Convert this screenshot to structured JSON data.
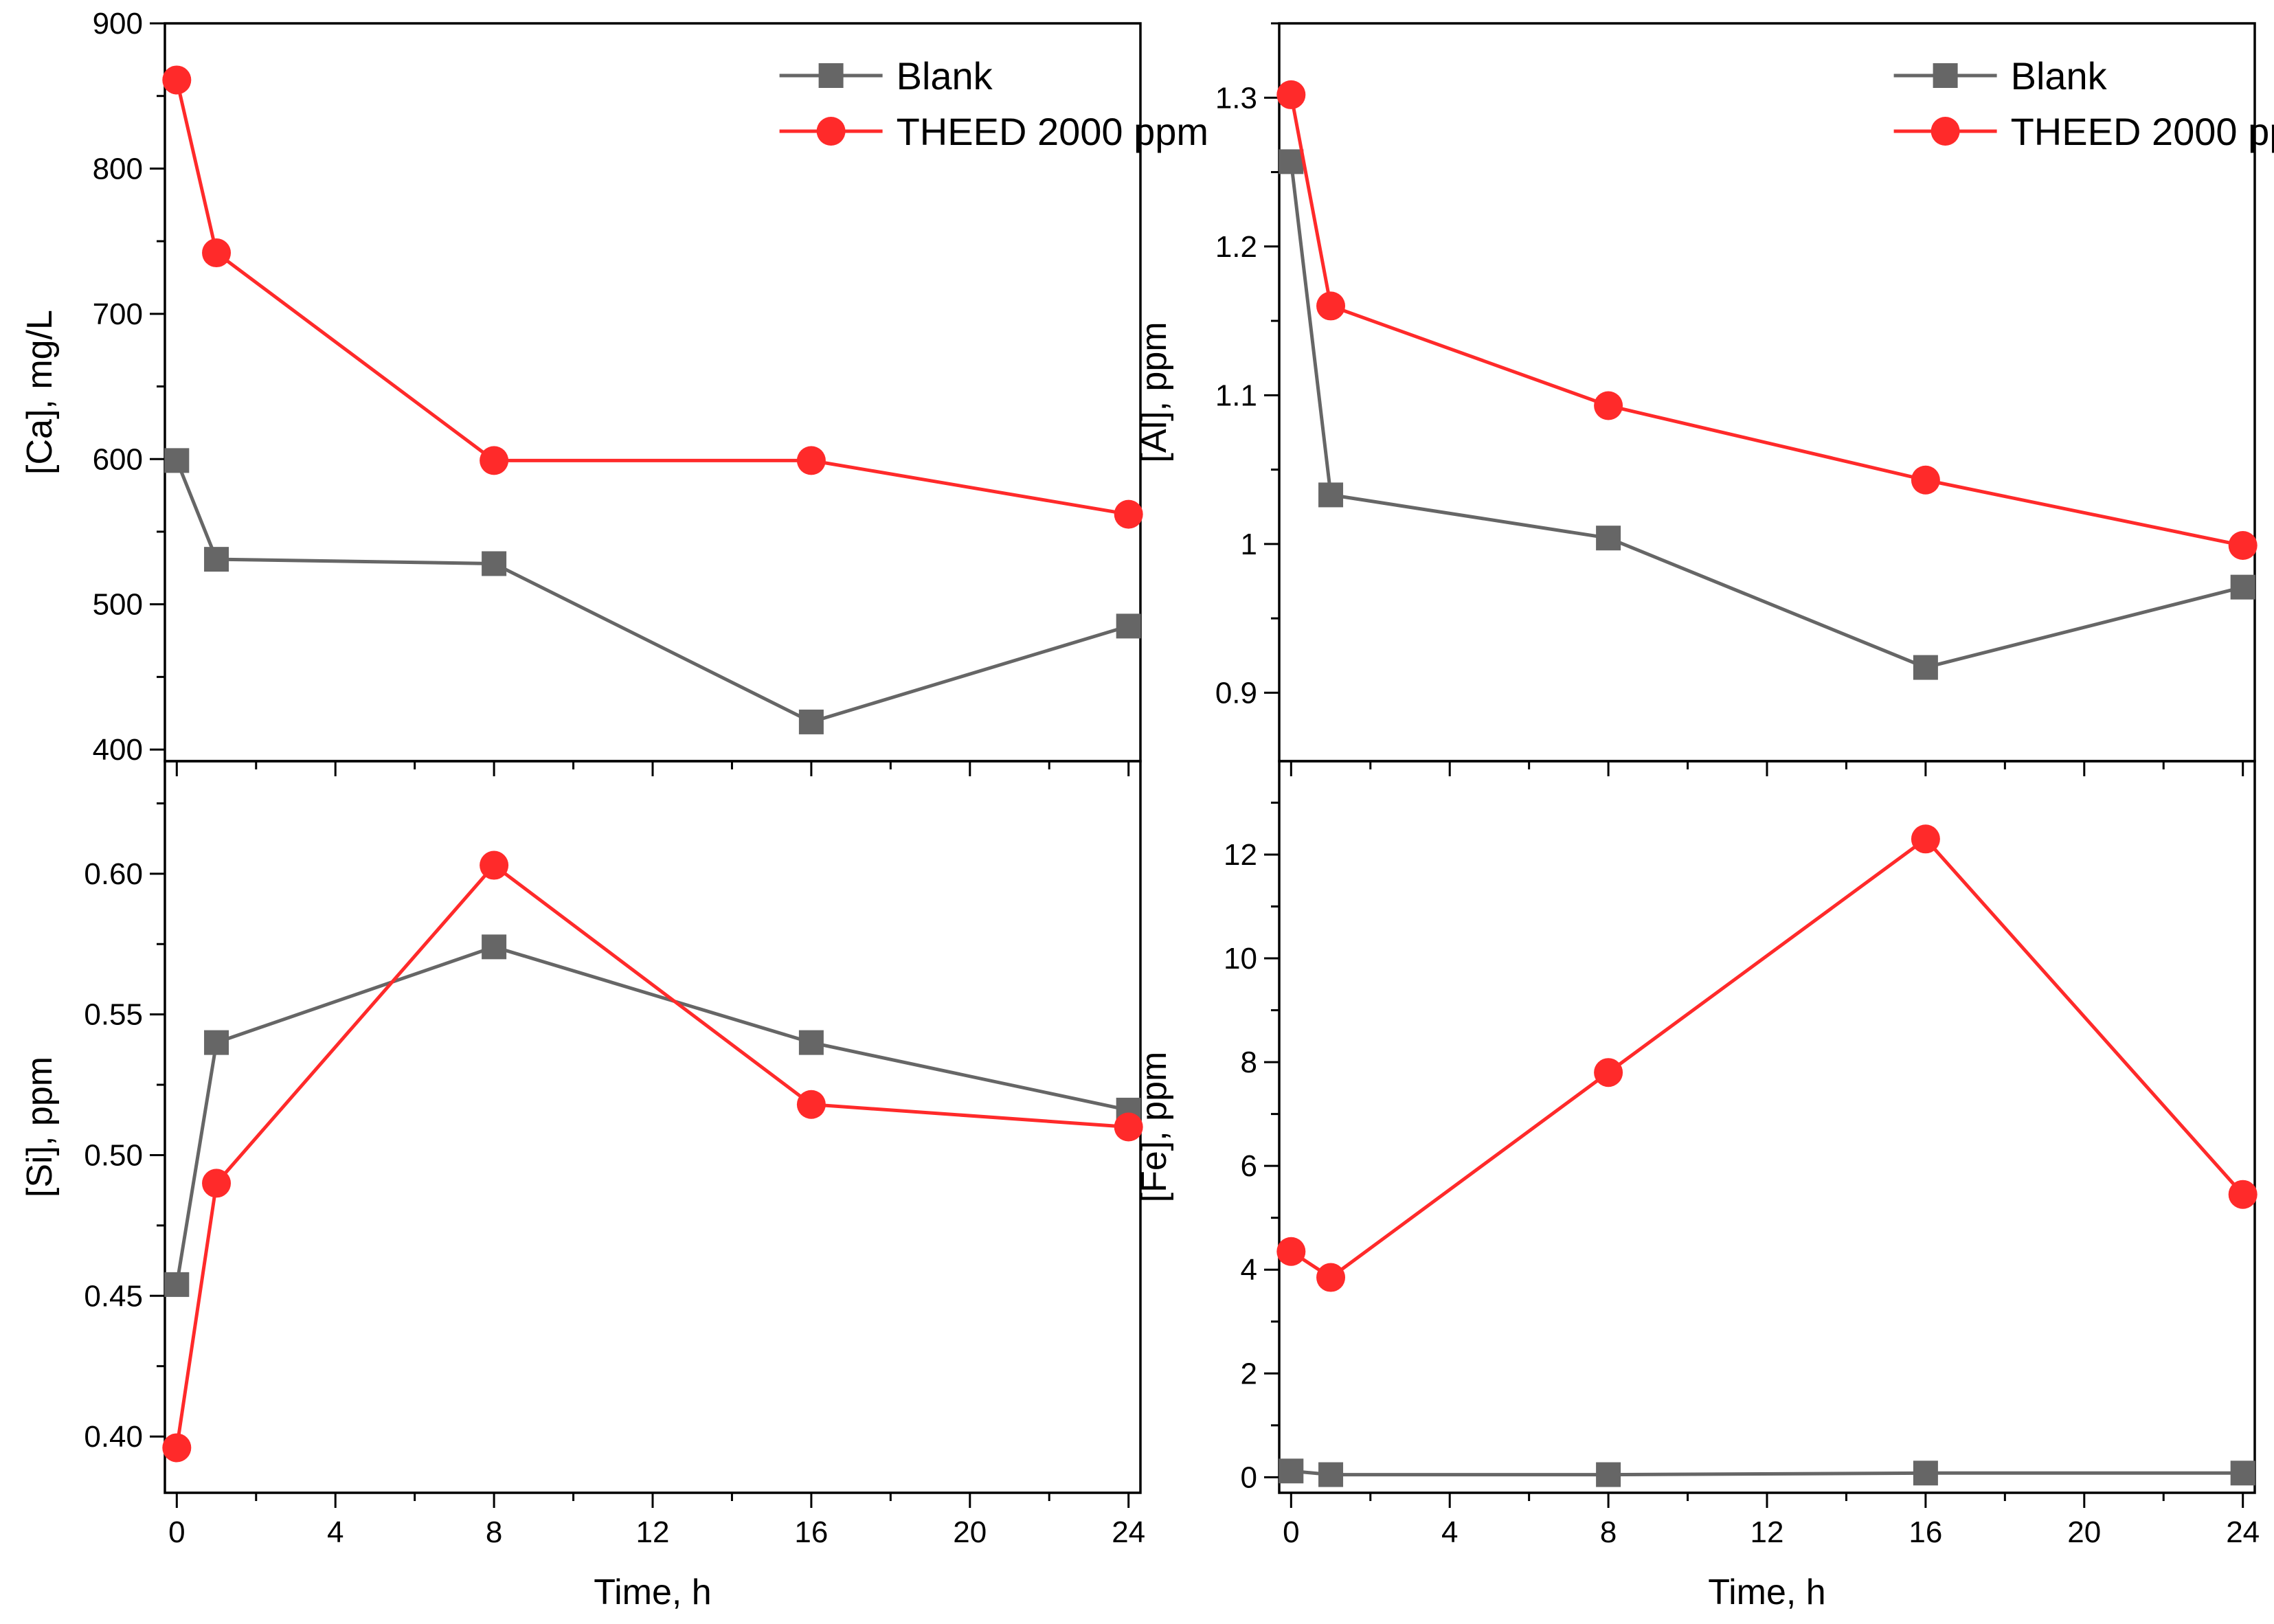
{
  "colors": {
    "blank": "#666666",
    "theed": "#ff2a2a"
  },
  "legend": {
    "blank": "Blank",
    "theed": "THEED 2000 ppm"
  },
  "chart_data": [
    {
      "type": "line",
      "panel": "top-left",
      "ylabel": "[Ca], mg/L",
      "xlabel": "",
      "xlim": [
        -0.3,
        24.3
      ],
      "ylim": [
        392,
        900
      ],
      "xticks": [
        0,
        4,
        8,
        12,
        16,
        20,
        24
      ],
      "yticks": [
        400,
        500,
        600,
        700,
        800,
        900
      ],
      "x_tick_labels_shown": false,
      "legend_position": "top-right",
      "x": [
        0,
        1,
        8,
        16,
        24
      ],
      "series": [
        {
          "name": "Blank",
          "values": [
            599,
            531,
            528,
            419,
            485
          ]
        },
        {
          "name": "THEED 2000 ppm",
          "values": [
            861,
            742,
            599,
            599,
            562
          ]
        }
      ]
    },
    {
      "type": "line",
      "panel": "top-right",
      "ylabel": "[Al], ppm",
      "xlabel": "",
      "xlim": [
        -0.3,
        24.3
      ],
      "ylim": [
        0.854,
        1.35
      ],
      "xticks": [
        0,
        4,
        8,
        12,
        16,
        20,
        24
      ],
      "yticks": [
        0.9,
        1.0,
        1.1,
        1.2,
        1.3
      ],
      "x_tick_labels_shown": false,
      "legend_position": "top-right",
      "x": [
        0,
        1,
        8,
        16,
        24
      ],
      "series": [
        {
          "name": "Blank",
          "values": [
            1.257,
            1.033,
            1.004,
            0.917,
            0.971
          ]
        },
        {
          "name": "THEED 2000 ppm",
          "values": [
            1.302,
            1.16,
            1.093,
            1.043,
            0.999
          ]
        }
      ]
    },
    {
      "type": "line",
      "panel": "bottom-left",
      "ylabel": "[Si], ppm",
      "xlabel": "Time, h",
      "xlim": [
        -0.3,
        24.3
      ],
      "ylim": [
        0.38,
        0.64
      ],
      "xticks": [
        0,
        4,
        8,
        12,
        16,
        20,
        24
      ],
      "yticks": [
        0.4,
        0.45,
        0.5,
        0.55,
        0.6
      ],
      "ytick_labels": [
        "0.40",
        "0.45",
        "0.50",
        "0.55",
        "0.60"
      ],
      "x_tick_labels_shown": true,
      "x": [
        0,
        1,
        8,
        16,
        24
      ],
      "series": [
        {
          "name": "Blank",
          "values": [
            0.454,
            0.54,
            0.574,
            0.54,
            0.516
          ]
        },
        {
          "name": "THEED 2000 ppm",
          "values": [
            0.396,
            0.49,
            0.603,
            0.518,
            0.51
          ]
        }
      ]
    },
    {
      "type": "line",
      "panel": "bottom-right",
      "ylabel": "[Fe], ppm",
      "xlabel": "Time, h",
      "xlim": [
        -0.3,
        24.3
      ],
      "ylim": [
        -0.3,
        13.8
      ],
      "xticks": [
        0,
        4,
        8,
        12,
        16,
        20,
        24
      ],
      "yticks": [
        0,
        2,
        4,
        6,
        8,
        10,
        12
      ],
      "x_tick_labels_shown": true,
      "x": [
        0,
        1,
        8,
        16,
        24
      ],
      "series": [
        {
          "name": "Blank",
          "values": [
            0.12,
            0.05,
            0.05,
            0.08,
            0.08
          ]
        },
        {
          "name": "THEED 2000 ppm",
          "values": [
            4.35,
            3.85,
            7.8,
            12.3,
            5.45
          ]
        }
      ]
    }
  ]
}
